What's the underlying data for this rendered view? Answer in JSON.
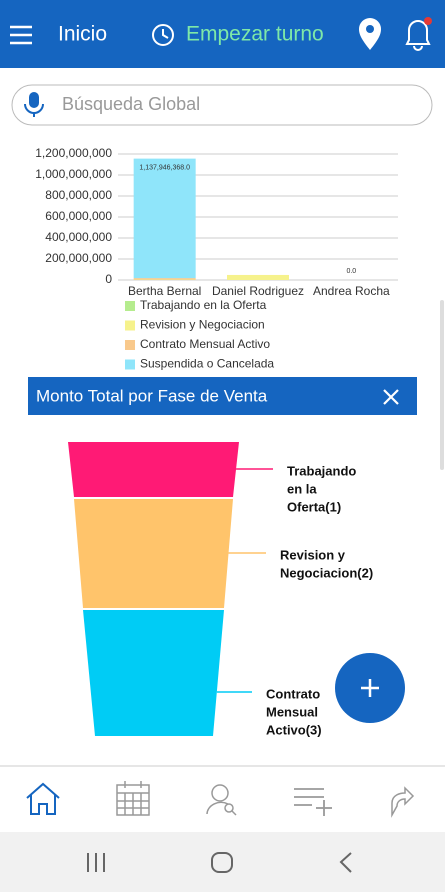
{
  "header": {
    "title": "Inicio",
    "action": "Empezar turno"
  },
  "search": {
    "placeholder": "Búsqueda Global"
  },
  "bar_chart": {
    "type": "bar",
    "stacked": true,
    "categories": [
      "Bertha Bernal",
      "Daniel Rodriguez",
      "Andrea Rocha"
    ],
    "series": [
      {
        "name": "Trabajando en la Oferta",
        "color": "#b5ec8e",
        "values": [
          0,
          0,
          0
        ]
      },
      {
        "name": "Revision y Negociacion",
        "color": "#f6f28c",
        "values": [
          4000000,
          48000000,
          0
        ]
      },
      {
        "name": "Contrato Mensual Activo",
        "color": "#f9c98c",
        "values": [
          14000000,
          0,
          0
        ]
      },
      {
        "name": "Suspendida o Cancelada",
        "color": "#8fe5fa",
        "values": [
          1137946368,
          0,
          0
        ],
        "value_labels": [
          "1,137,946,368.0",
          null,
          "0.0"
        ]
      }
    ],
    "ylim": [
      0,
      1200000000
    ],
    "yticks": [
      0,
      {
        "value": 200000000,
        "label": "200,000,000"
      },
      {
        "value": 400000000,
        "label": "400,000,000"
      },
      {
        "value": 600000000,
        "label": "600,000,000"
      },
      {
        "value": 800000000,
        "label": "800,000,000"
      },
      {
        "value": 1000000000,
        "label": "1,000,000,000"
      },
      {
        "value": 1200000000,
        "label": "1,200,000,000"
      }
    ],
    "grid": true
  },
  "panel": {
    "title": "Monto Total por Fase de Venta"
  },
  "funnel": {
    "stages": [
      {
        "lines": [
          "Trabajando",
          "en la",
          "Oferta(1)"
        ],
        "color": "#ff1a75"
      },
      {
        "lines": [
          "Revision y",
          "Negociacion(2)"
        ],
        "color": "#ffc46b"
      },
      {
        "lines": [
          "Contrato",
          "Mensual",
          "Activo(3)"
        ],
        "color": "#00ccf5"
      }
    ]
  }
}
